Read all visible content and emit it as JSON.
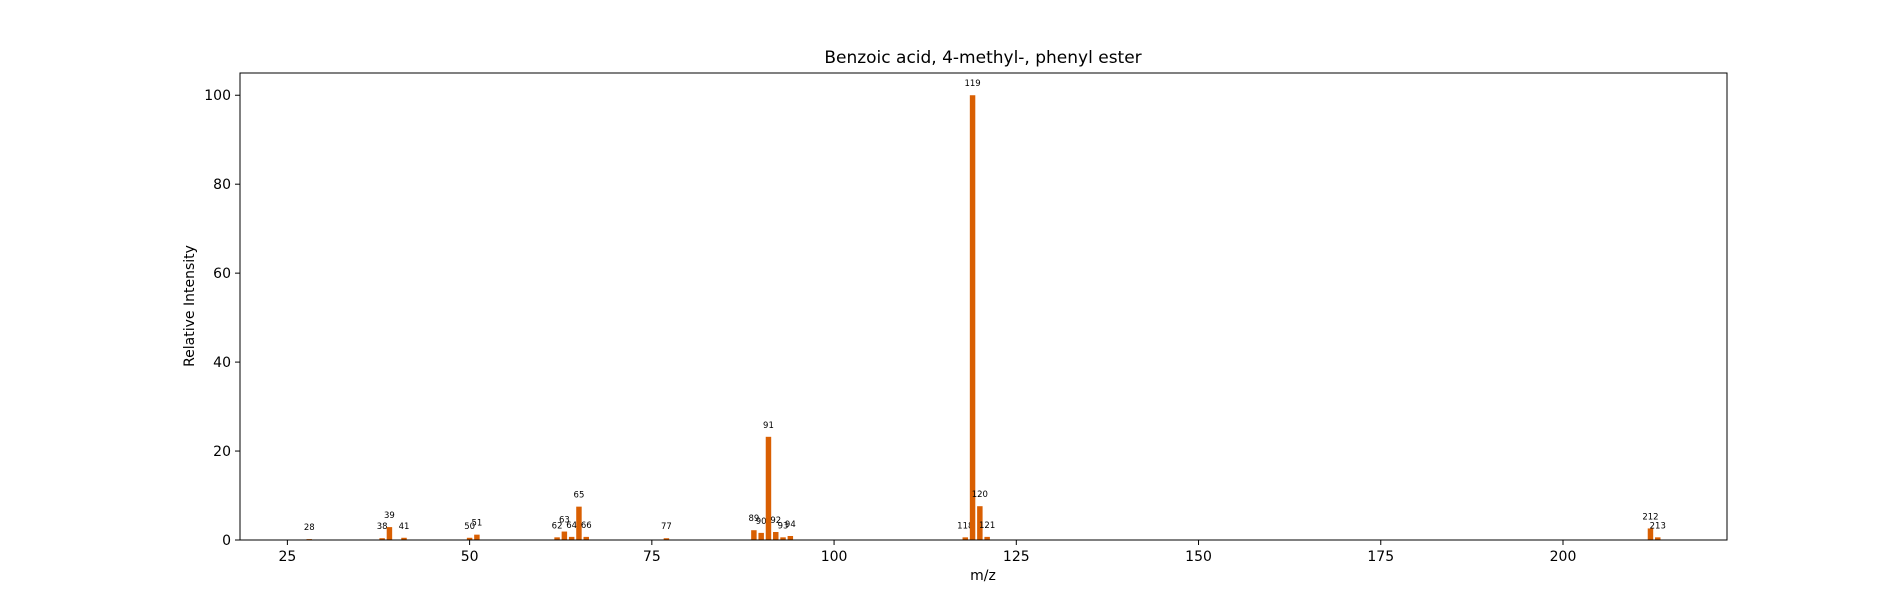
{
  "chart_data": {
    "type": "bar",
    "title": "Benzoic acid, 4-methyl-, phenyl ester",
    "xlabel": "m/z",
    "ylabel": "Relative Intensity",
    "xlim": [
      18.5,
      222.5
    ],
    "ylim": [
      0,
      105
    ],
    "xticks": [
      25,
      50,
      75,
      100,
      125,
      150,
      175,
      200
    ],
    "yticks": [
      0,
      20,
      40,
      60,
      80,
      100
    ],
    "bar_color": "#d95f02",
    "grid": false,
    "peaks": [
      {
        "mz": 28,
        "intensity": 0.2,
        "label": "28"
      },
      {
        "mz": 38,
        "intensity": 0.4,
        "label": "38"
      },
      {
        "mz": 39,
        "intensity": 2.9,
        "label": "39"
      },
      {
        "mz": 41,
        "intensity": 0.5,
        "label": "41"
      },
      {
        "mz": 50,
        "intensity": 0.5,
        "label": "50"
      },
      {
        "mz": 51,
        "intensity": 1.2,
        "label": "51"
      },
      {
        "mz": 62,
        "intensity": 0.6,
        "label": "62"
      },
      {
        "mz": 63,
        "intensity": 1.9,
        "label": "63"
      },
      {
        "mz": 64,
        "intensity": 0.7,
        "label": "64"
      },
      {
        "mz": 65,
        "intensity": 7.5,
        "label": "65"
      },
      {
        "mz": 66,
        "intensity": 0.7,
        "label": "66"
      },
      {
        "mz": 77,
        "intensity": 0.4,
        "label": "77"
      },
      {
        "mz": 89,
        "intensity": 2.2,
        "label": "89"
      },
      {
        "mz": 90,
        "intensity": 1.6,
        "label": "90"
      },
      {
        "mz": 91,
        "intensity": 23.2,
        "label": "91"
      },
      {
        "mz": 92,
        "intensity": 1.8,
        "label": "92"
      },
      {
        "mz": 93,
        "intensity": 0.6,
        "label": "93"
      },
      {
        "mz": 94,
        "intensity": 0.9,
        "label": "94"
      },
      {
        "mz": 118,
        "intensity": 0.6,
        "label": "118"
      },
      {
        "mz": 119,
        "intensity": 100,
        "label": "119"
      },
      {
        "mz": 120,
        "intensity": 7.6,
        "label": "120"
      },
      {
        "mz": 121,
        "intensity": 0.7,
        "label": "121"
      },
      {
        "mz": 212,
        "intensity": 2.6,
        "label": "212"
      },
      {
        "mz": 213,
        "intensity": 0.6,
        "label": "213"
      }
    ]
  }
}
